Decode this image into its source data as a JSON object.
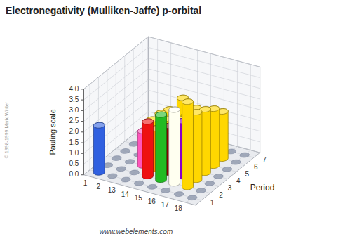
{
  "chart_data": {
    "type": "bar3d",
    "title": "Electronegativity (Mulliken-Jaffe) p-orbital",
    "ylabel": "Period",
    "zlabel": "Pauling scale",
    "annotations": [
      "www.webelements.com",
      "© 1998-1999 Mark Winter"
    ],
    "categories": [
      "1",
      "2",
      "13",
      "14",
      "15",
      "16",
      "17",
      "18"
    ],
    "series": [
      {
        "name": "1",
        "values": [
          2.2,
          0,
          0,
          0,
          0,
          0,
          0,
          0
        ],
        "colors": [
          "#3060E0",
          "none",
          "none",
          "none",
          "none",
          "none",
          "none",
          "none"
        ]
      },
      {
        "name": "2",
        "values": [
          0,
          0,
          0,
          2.55,
          3.04,
          3.44,
          3.98,
          0
        ],
        "colors": [
          "none",
          "none",
          "none",
          "#EE1111",
          "#22BB22",
          "#FFFFF0",
          "#FFD700",
          "none"
        ]
      },
      {
        "name": "3",
        "values": [
          0,
          0,
          1.61,
          1.9,
          2.19,
          2.58,
          3.16,
          0
        ],
        "colors": [
          "none",
          "none",
          "#FF55BB",
          "#FF8C00",
          "#8B0000",
          "#8800CC",
          "#FFD700",
          "none"
        ]
      },
      {
        "name": "4",
        "values": [
          0,
          0,
          1.81,
          2.01,
          2.18,
          2.55,
          2.96,
          0
        ],
        "colors": [
          "none",
          "none",
          "#FFD700",
          "#FFD700",
          "#FFD700",
          "#FFD700",
          "#FFD700",
          "none"
        ]
      },
      {
        "name": "5",
        "values": [
          0,
          0,
          1.78,
          1.96,
          2.05,
          2.1,
          2.66,
          0
        ],
        "colors": [
          "none",
          "none",
          "#FFD700",
          "#FFD700",
          "#FFD700",
          "#FFD700",
          "#FFD700",
          "none"
        ]
      },
      {
        "name": "6",
        "values": [
          0,
          0,
          1.62,
          2.33,
          2.02,
          2.0,
          2.2,
          0
        ],
        "colors": [
          "none",
          "none",
          "#FFD700",
          "#FFD700",
          "#FFD700",
          "#FFD700",
          "#FFD700",
          "none"
        ]
      },
      {
        "name": "7",
        "values": [
          0,
          0,
          0,
          0,
          0,
          0,
          0,
          0
        ],
        "colors": [
          "none",
          "none",
          "none",
          "none",
          "none",
          "none",
          "none",
          "none"
        ]
      }
    ],
    "zlim": [
      0.0,
      4.0
    ],
    "zticks": [
      {
        "value": 0.0,
        "label": "0.0"
      },
      0.5,
      {
        "value": 1.0,
        "label": "1.0"
      },
      1.5,
      {
        "value": 2.0,
        "label": "2.0"
      },
      2.5,
      {
        "value": 3.0,
        "label": "3.0"
      },
      3.5,
      {
        "value": 4.0,
        "label": "4.0"
      }
    ],
    "grid": true
  }
}
